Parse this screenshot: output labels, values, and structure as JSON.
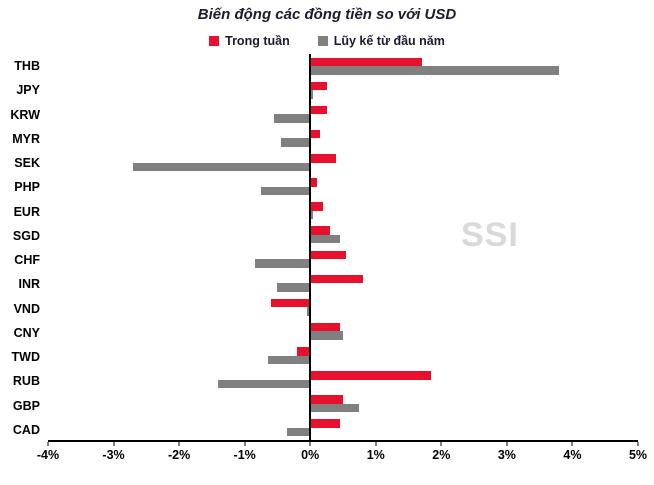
{
  "title": "Biến động các đồng tiền so với USD",
  "watermark": "SSI",
  "legend": [
    {
      "label": "Trong tuần",
      "color": "#e8112d"
    },
    {
      "label": "Lũy kế từ đầu năm",
      "color": "#808080"
    }
  ],
  "chart_data": {
    "type": "bar",
    "orientation": "horizontal",
    "title": "Biến động các đồng tiền so với USD",
    "categories": [
      "THB",
      "JPY",
      "KRW",
      "MYR",
      "SEK",
      "PHP",
      "EUR",
      "SGD",
      "CHF",
      "INR",
      "VND",
      "CNY",
      "TWD",
      "RUB",
      "GBP",
      "CAD"
    ],
    "series": [
      {
        "name": "Trong tuần",
        "color": "#e8112d",
        "values": [
          1.7,
          0.25,
          0.25,
          0.15,
          0.4,
          0.1,
          0.2,
          0.3,
          0.55,
          0.8,
          -0.6,
          0.45,
          -0.2,
          1.85,
          0.5,
          0.45
        ]
      },
      {
        "name": "Lũy kế từ đầu năm",
        "color": "#808080",
        "values": [
          3.8,
          0.05,
          -0.55,
          -0.45,
          -2.7,
          -0.75,
          0.05,
          0.45,
          -0.85,
          -0.5,
          -0.05,
          0.5,
          -0.65,
          -1.4,
          0.75,
          -0.35
        ]
      }
    ],
    "xlim": [
      -4,
      5
    ],
    "x_tick_values": [
      -4,
      -3,
      -2,
      -1,
      0,
      1,
      2,
      3,
      4,
      5
    ],
    "x_ticks": [
      "-4%",
      "-3%",
      "-2%",
      "-1%",
      "0%",
      "1%",
      "2%",
      "3%",
      "4%",
      "5%"
    ],
    "xlabel": "",
    "ylabel": "",
    "grid": false,
    "legend_position": "top"
  }
}
